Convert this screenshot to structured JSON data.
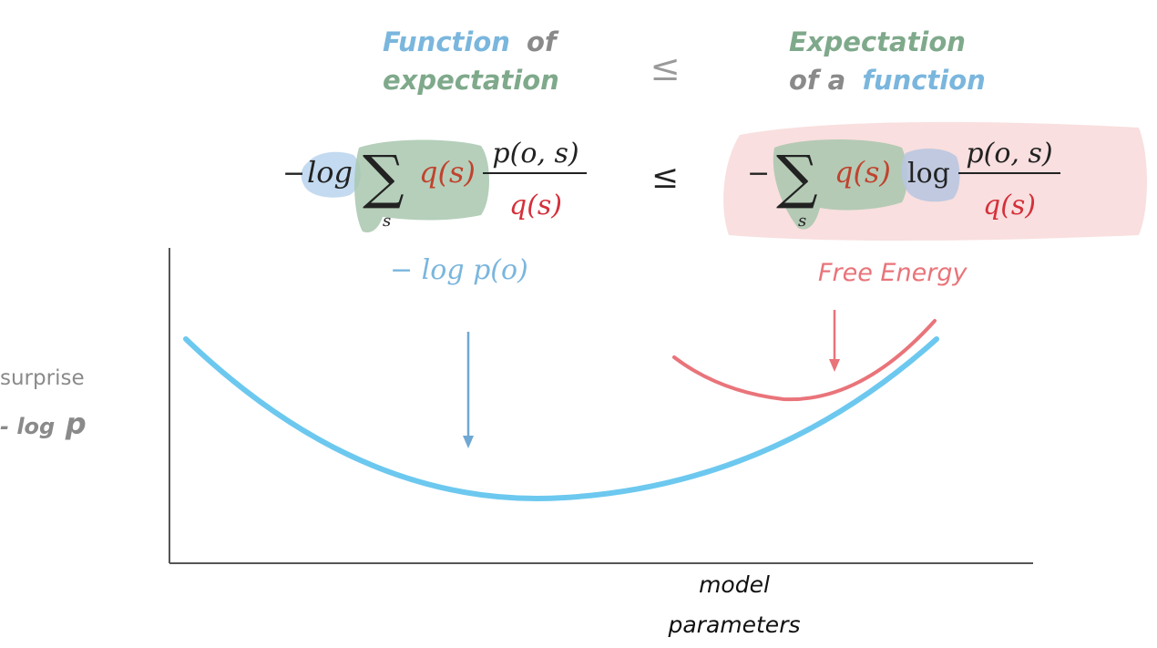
{
  "headings": {
    "left": {
      "line1_a": "Function",
      "line1_b": "of",
      "line2": "expectation"
    },
    "operator": "≤",
    "right": {
      "line1": "Expectation",
      "line2_a": "of a",
      "line2_b": "function"
    }
  },
  "equation": {
    "left": {
      "minus": "−",
      "log": "log",
      "sum": "∑",
      "sum_index": "s",
      "q": "q(s)",
      "numerator": "p(o, s)",
      "denominator": "q(s)"
    },
    "operator": "≤",
    "right": {
      "minus": "−",
      "sum": "∑",
      "sum_index": "s",
      "q": "q(s)",
      "log": "log",
      "numerator": "p(o, s)",
      "denominator": "q(s)"
    }
  },
  "annotations": {
    "surprise_expr": "− log  p(o)",
    "free_energy": "Free Energy"
  },
  "axes": {
    "ylabel_line1": "surprise",
    "ylabel_line2_a": "- log",
    "ylabel_line2_b": "p",
    "xlabel_line1": "model",
    "xlabel_line2": "parameters"
  },
  "colors": {
    "blue": "#6cc8ef",
    "blue_text": "#7ab6dd",
    "green": "#7fa98b",
    "gray": "#8a8a8a",
    "red": "#e9747a",
    "dark_red": "#c0432e",
    "arrow_blue": "#6fa8d2"
  }
}
